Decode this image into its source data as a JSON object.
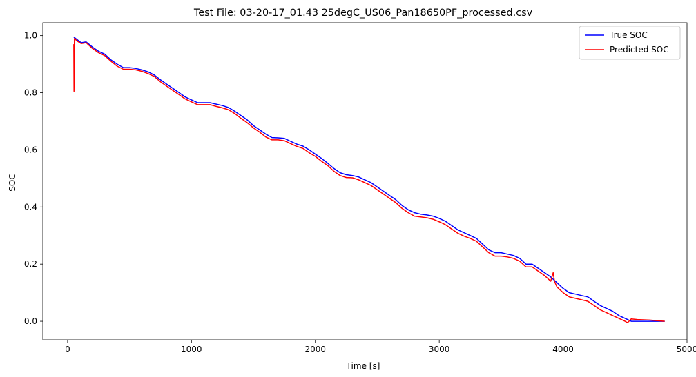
{
  "chart_data": {
    "type": "line",
    "title": "Test File: 03-20-17_01.43 25degC_US06_Pan18650PF_processed.csv",
    "xlabel": "Time [s]",
    "ylabel": "SOC",
    "xlim": [
      -200,
      5000
    ],
    "ylim": [
      -0.065,
      1.045
    ],
    "xticks": [
      0,
      1000,
      2000,
      3000,
      4000,
      5000
    ],
    "xtick_labels": [
      "0",
      "1000",
      "2000",
      "3000",
      "4000",
      "5000"
    ],
    "yticks": [
      0.0,
      0.2,
      0.4,
      0.6,
      0.8,
      1.0
    ],
    "ytick_labels": [
      "0.0",
      "0.2",
      "0.4",
      "0.6",
      "0.8",
      "1.0"
    ],
    "grid": false,
    "legend_position": "top-right",
    "series": [
      {
        "name": "True SOC",
        "color": "#0000ff",
        "x": [
          50,
          80,
          110,
          150,
          200,
          250,
          300,
          350,
          400,
          450,
          500,
          550,
          600,
          650,
          700,
          750,
          800,
          850,
          900,
          950,
          1000,
          1050,
          1100,
          1150,
          1200,
          1250,
          1300,
          1350,
          1400,
          1450,
          1500,
          1550,
          1600,
          1650,
          1700,
          1750,
          1800,
          1850,
          1900,
          1950,
          2000,
          2050,
          2100,
          2150,
          2200,
          2250,
          2300,
          2350,
          2400,
          2450,
          2500,
          2550,
          2600,
          2650,
          2700,
          2750,
          2800,
          2850,
          2900,
          2950,
          3000,
          3050,
          3100,
          3150,
          3200,
          3250,
          3300,
          3350,
          3400,
          3450,
          3500,
          3550,
          3600,
          3650,
          3700,
          3750,
          3800,
          3850,
          3900,
          3950,
          4000,
          4050,
          4100,
          4150,
          4200,
          4250,
          4300,
          4350,
          4400,
          4450,
          4500,
          4550,
          4600,
          4700,
          4820
        ],
        "y": [
          0.995,
          0.985,
          0.975,
          0.978,
          0.96,
          0.945,
          0.935,
          0.915,
          0.9,
          0.888,
          0.888,
          0.885,
          0.88,
          0.873,
          0.862,
          0.845,
          0.83,
          0.815,
          0.8,
          0.785,
          0.775,
          0.765,
          0.765,
          0.765,
          0.76,
          0.755,
          0.748,
          0.735,
          0.72,
          0.705,
          0.685,
          0.67,
          0.655,
          0.643,
          0.642,
          0.64,
          0.63,
          0.62,
          0.613,
          0.6,
          0.585,
          0.57,
          0.553,
          0.535,
          0.52,
          0.513,
          0.51,
          0.505,
          0.495,
          0.485,
          0.47,
          0.455,
          0.44,
          0.425,
          0.405,
          0.39,
          0.38,
          0.375,
          0.372,
          0.368,
          0.36,
          0.35,
          0.335,
          0.32,
          0.31,
          0.3,
          0.29,
          0.27,
          0.25,
          0.24,
          0.24,
          0.235,
          0.23,
          0.22,
          0.2,
          0.2,
          0.185,
          0.17,
          0.155,
          0.135,
          0.115,
          0.1,
          0.095,
          0.09,
          0.085,
          0.07,
          0.055,
          0.045,
          0.035,
          0.02,
          0.01,
          0.0,
          0.0,
          0.0,
          0.0
        ]
      },
      {
        "name": "Predicted SOC",
        "color": "#ff0000",
        "x": [
          50,
          52,
          55,
          80,
          110,
          150,
          200,
          250,
          300,
          350,
          400,
          450,
          500,
          550,
          600,
          650,
          700,
          750,
          800,
          850,
          900,
          950,
          1000,
          1050,
          1100,
          1150,
          1200,
          1250,
          1300,
          1350,
          1400,
          1450,
          1500,
          1550,
          1600,
          1650,
          1700,
          1750,
          1800,
          1850,
          1900,
          1950,
          2000,
          2050,
          2100,
          2150,
          2200,
          2250,
          2300,
          2350,
          2400,
          2450,
          2500,
          2550,
          2600,
          2650,
          2700,
          2750,
          2800,
          2850,
          2900,
          2950,
          3000,
          3050,
          3100,
          3150,
          3200,
          3250,
          3300,
          3350,
          3400,
          3450,
          3500,
          3550,
          3600,
          3650,
          3700,
          3750,
          3800,
          3850,
          3900,
          3920,
          3930,
          3950,
          4000,
          4050,
          4100,
          4150,
          4200,
          4250,
          4300,
          4350,
          4400,
          4450,
          4500,
          4520,
          4550,
          4600,
          4700,
          4820
        ],
        "y": [
          0.97,
          0.805,
          0.99,
          0.98,
          0.972,
          0.975,
          0.955,
          0.94,
          0.93,
          0.91,
          0.893,
          0.882,
          0.882,
          0.88,
          0.875,
          0.867,
          0.857,
          0.838,
          0.823,
          0.808,
          0.793,
          0.778,
          0.768,
          0.758,
          0.758,
          0.758,
          0.752,
          0.747,
          0.74,
          0.727,
          0.71,
          0.695,
          0.677,
          0.662,
          0.645,
          0.635,
          0.635,
          0.632,
          0.622,
          0.612,
          0.605,
          0.59,
          0.577,
          0.56,
          0.545,
          0.525,
          0.51,
          0.503,
          0.502,
          0.495,
          0.485,
          0.475,
          0.46,
          0.445,
          0.43,
          0.415,
          0.395,
          0.38,
          0.368,
          0.365,
          0.362,
          0.357,
          0.348,
          0.338,
          0.323,
          0.308,
          0.298,
          0.29,
          0.28,
          0.26,
          0.24,
          0.228,
          0.228,
          0.225,
          0.22,
          0.21,
          0.19,
          0.19,
          0.175,
          0.16,
          0.14,
          0.17,
          0.14,
          0.12,
          0.1,
          0.085,
          0.08,
          0.075,
          0.07,
          0.055,
          0.04,
          0.03,
          0.02,
          0.01,
          0.0,
          -0.005,
          0.008,
          0.006,
          0.004,
          0.0
        ]
      }
    ]
  }
}
